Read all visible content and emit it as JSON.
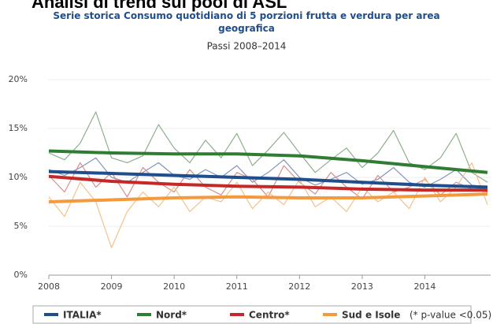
{
  "header": {
    "title": "Analisi di trend sui pool di ASL"
  },
  "chart_data": {
    "type": "line",
    "title": "Serie storica Consumo quotidiano di 5 porzioni frutta e verdura per area geografica",
    "subtitle": "Passi 2008–2014",
    "xlim": [
      2008,
      2015.05
    ],
    "xticks": [
      2008,
      2009,
      2010,
      2011,
      2012,
      2013,
      2014
    ],
    "ylim": [
      0,
      20
    ],
    "yticks": [
      {
        "value": 0,
        "label": "0%"
      },
      {
        "value": 5,
        "label": "5%"
      },
      {
        "value": 10,
        "label": "10%"
      },
      {
        "value": 15,
        "label": "15%"
      },
      {
        "value": 20,
        "label": "20%"
      }
    ],
    "grid": true,
    "note": "(* p-value <0.05)",
    "series": [
      {
        "color": "#8fae8f",
        "width": 1.2,
        "x": [
          2008,
          2008.25,
          2008.5,
          2008.75,
          2009,
          2009.25,
          2009.5,
          2009.75,
          2010,
          2010.25,
          2010.5,
          2010.75,
          2011,
          2011.25,
          2011.5,
          2011.75,
          2012,
          2012.25,
          2012.5,
          2012.75,
          2013,
          2013.25,
          2013.5,
          2013.75,
          2014,
          2014.25,
          2014.5,
          2014.75,
          2015
        ],
        "values": [
          12.5,
          11.8,
          13.5,
          16.7,
          12.0,
          11.5,
          12.2,
          15.4,
          13.0,
          11.5,
          13.8,
          12.0,
          14.5,
          11.2,
          12.8,
          14.6,
          12.5,
          10.5,
          11.8,
          13.0,
          11.0,
          12.5,
          14.8,
          11.5,
          10.8,
          12.0,
          14.5,
          10.5,
          9.5
        ]
      },
      {
        "color": "#8394b8",
        "width": 1.2,
        "x": [
          2008,
          2008.25,
          2008.5,
          2008.75,
          2009,
          2009.25,
          2009.5,
          2009.75,
          2010,
          2010.25,
          2010.5,
          2010.75,
          2011,
          2011.25,
          2011.5,
          2011.75,
          2012,
          2012.25,
          2012.5,
          2012.75,
          2013,
          2013.25,
          2013.5,
          2013.75,
          2014,
          2014.25,
          2014.5,
          2014.75,
          2015
        ],
        "values": [
          10.8,
          10.2,
          11.0,
          12.0,
          10.0,
          9.5,
          10.5,
          11.5,
          10.2,
          9.8,
          10.8,
          10.0,
          11.2,
          9.5,
          10.5,
          11.8,
          10.0,
          9.2,
          9.8,
          10.5,
          9.3,
          9.8,
          11.0,
          9.5,
          9.0,
          9.8,
          10.8,
          9.2,
          9.0
        ]
      },
      {
        "color": "#d98c8c",
        "width": 1.2,
        "x": [
          2008,
          2008.25,
          2008.5,
          2008.75,
          2009,
          2009.25,
          2009.5,
          2009.75,
          2010,
          2010.25,
          2010.5,
          2010.75,
          2011,
          2011.25,
          2011.5,
          2011.75,
          2012,
          2012.25,
          2012.5,
          2012.75,
          2013,
          2013.25,
          2013.5,
          2013.75,
          2014,
          2014.25,
          2014.5,
          2014.75,
          2015
        ],
        "values": [
          10.2,
          8.5,
          11.5,
          9.0,
          10.5,
          8.0,
          11.0,
          9.5,
          8.5,
          10.8,
          9.0,
          8.2,
          10.5,
          9.8,
          8.0,
          11.2,
          9.5,
          8.3,
          10.5,
          9.0,
          7.8,
          10.2,
          8.5,
          9.0,
          9.8,
          8.2,
          9.5,
          8.8,
          8.5
        ]
      },
      {
        "color": "#f5c18c",
        "width": 1.2,
        "x": [
          2008,
          2008.25,
          2008.5,
          2008.75,
          2009,
          2009.25,
          2009.5,
          2009.75,
          2010,
          2010.25,
          2010.5,
          2010.75,
          2011,
          2011.25,
          2011.5,
          2011.75,
          2012,
          2012.25,
          2012.5,
          2012.75,
          2013,
          2013.25,
          2013.5,
          2013.75,
          2014,
          2014.25,
          2014.5,
          2014.75,
          2015
        ],
        "values": [
          8.0,
          6.0,
          9.5,
          7.5,
          2.8,
          6.5,
          8.5,
          7.0,
          9.0,
          6.5,
          8.0,
          7.5,
          9.5,
          6.8,
          8.5,
          7.2,
          9.8,
          7.0,
          8.0,
          6.5,
          9.0,
          7.5,
          8.5,
          6.8,
          10.0,
          7.5,
          9.0,
          11.5,
          7.2
        ]
      },
      {
        "name": "ITALIA*",
        "color": "#1f4e8c",
        "width": 4,
        "x": [
          2008,
          2009,
          2010,
          2011,
          2012,
          2013,
          2014,
          2015
        ],
        "values": [
          10.6,
          10.4,
          10.2,
          10.0,
          9.8,
          9.5,
          9.2,
          9.0
        ]
      },
      {
        "name": "Nord*",
        "color": "#2e7d32",
        "width": 4,
        "x": [
          2008,
          2009,
          2010,
          2011,
          2012,
          2013,
          2014,
          2015
        ],
        "values": [
          12.7,
          12.5,
          12.4,
          12.4,
          12.2,
          11.7,
          11.1,
          10.5
        ]
      },
      {
        "name": "Centro*",
        "color": "#c62828",
        "width": 4,
        "x": [
          2008,
          2009,
          2010,
          2011,
          2012,
          2013,
          2014,
          2015
        ],
        "values": [
          10.1,
          9.6,
          9.3,
          9.1,
          9.0,
          8.8,
          8.7,
          8.7
        ]
      },
      {
        "name": "Sud e Isole",
        "color": "#f59a3c",
        "width": 4,
        "x": [
          2008,
          2009,
          2010,
          2011,
          2012,
          2013,
          2014,
          2015
        ],
        "values": [
          7.5,
          7.7,
          7.9,
          8.0,
          7.9,
          7.9,
          8.1,
          8.3
        ]
      }
    ]
  }
}
